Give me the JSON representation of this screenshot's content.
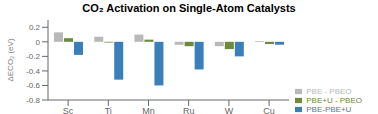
{
  "chart_data": {
    "type": "bar",
    "title": "CO₂ Activation on Single-Atom Catalysts",
    "categories": [
      "Sc",
      "Ti",
      "Mn",
      "Ru",
      "W",
      "Cu"
    ],
    "series": [
      {
        "name": "PBE - PBEO",
        "color": "#b8b8b8",
        "values": [
          0.13,
          0.07,
          0.1,
          -0.04,
          -0.06,
          0.01
        ]
      },
      {
        "name": "PBE+U - PBEO",
        "color": "#6b8a3a",
        "values": [
          0.05,
          -0.01,
          0.03,
          -0.06,
          -0.1,
          -0.03
        ]
      },
      {
        "name": "PBE-PBE+U",
        "color": "#3a7fba",
        "values": [
          -0.18,
          -0.52,
          -0.6,
          -0.38,
          -0.2,
          -0.04
        ]
      }
    ],
    "ylabel": "ΔECO₂ (eV)",
    "ylim": [
      -0.8,
      0.3
    ],
    "yticks": [
      -0.8,
      -0.6,
      -0.4,
      -0.2,
      0.0,
      0.2
    ],
    "grid": false,
    "legend": "lower right"
  }
}
